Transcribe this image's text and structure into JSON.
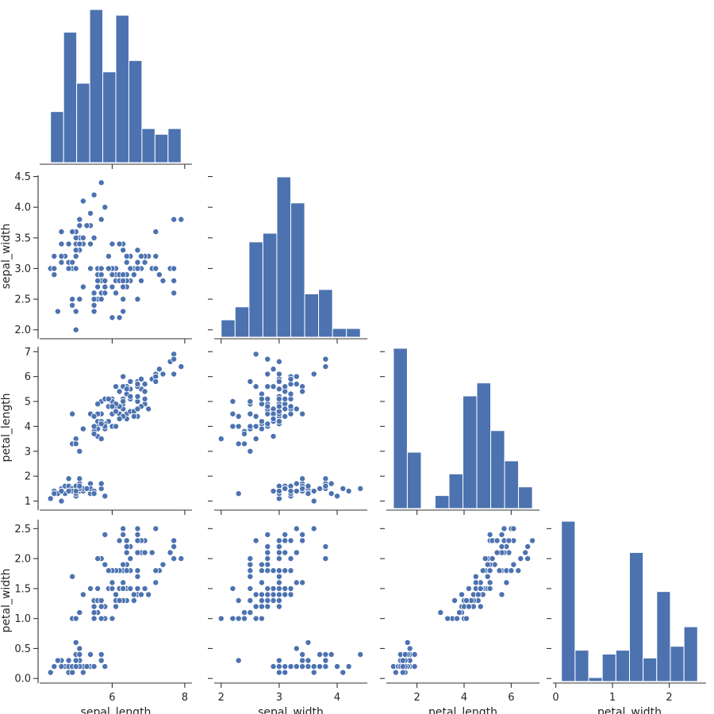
{
  "chart_data": {
    "type": "pairplot",
    "corner": true,
    "color": "#4c72b0",
    "variables": [
      "sepal_length",
      "sepal_width",
      "petal_length",
      "petal_width"
    ],
    "axis_labels": {
      "sepal_length": "sepal_length",
      "sepal_width": "sepal_width",
      "petal_length": "petal_length",
      "petal_width": "petal_width"
    },
    "ranges": {
      "sepal_length": [
        4.0,
        8.2
      ],
      "sepal_width": [
        1.88,
        4.52
      ],
      "petal_length": [
        0.7,
        7.2
      ],
      "petal_width": [
        -0.05,
        2.65
      ]
    },
    "ticks": {
      "sepal_length": [
        6,
        8
      ],
      "sepal_width": [
        2.0,
        2.5,
        3.0,
        3.5,
        4.0,
        4.5
      ],
      "petal_length": [
        1,
        2,
        3,
        4,
        5,
        6,
        7
      ],
      "petal_width": [
        0.0,
        0.5,
        1.0,
        1.5,
        2.0,
        2.5
      ]
    },
    "x_ticks": {
      "sepal_length": [
        "6",
        "8"
      ],
      "sepal_width": [
        "2",
        "3",
        "4"
      ],
      "petal_length": [
        "2",
        "4",
        "6"
      ],
      "petal_width": [
        "0",
        "1",
        "2"
      ]
    },
    "x_tick_values": {
      "sepal_length": [
        6,
        8
      ],
      "sepal_width": [
        2,
        3,
        4
      ],
      "petal_length": [
        2,
        4,
        6
      ],
      "petal_width": [
        0,
        1,
        2
      ]
    },
    "y_ticks": {
      "sepal_width": [
        "2.0",
        "2.5",
        "3.0",
        "3.5",
        "4.0",
        "4.5"
      ],
      "petal_length": [
        "1",
        "2",
        "3",
        "4",
        "5",
        "6",
        "7"
      ],
      "petal_width": [
        "0.0",
        "0.5",
        "1.0",
        "1.5",
        "2.0",
        "2.5"
      ]
    },
    "y_tick_values": {
      "sepal_width": [
        2.0,
        2.5,
        3.0,
        3.5,
        4.0,
        4.5
      ],
      "petal_length": [
        1,
        2,
        3,
        4,
        5,
        6,
        7
      ],
      "petal_width": [
        0.0,
        0.5,
        1.0,
        1.5,
        2.0,
        2.5
      ]
    },
    "histograms": {
      "sepal_length": {
        "edges": [
          4.3,
          4.66,
          5.02,
          5.38,
          5.74,
          6.1,
          6.46,
          6.82,
          7.18,
          7.54,
          7.9
        ],
        "counts": [
          9,
          23,
          14,
          27,
          16,
          26,
          18,
          6,
          5,
          6
        ]
      },
      "sepal_width": {
        "edges": [
          2.0,
          2.24,
          2.48,
          2.72,
          2.96,
          3.2,
          3.44,
          3.68,
          3.92,
          4.16,
          4.4
        ],
        "counts": [
          4,
          7,
          22,
          24,
          37,
          31,
          10,
          11,
          2,
          2
        ]
      },
      "petal_length": {
        "edges": [
          1.0,
          1.59,
          2.18,
          2.77,
          3.36,
          3.95,
          4.54,
          5.13,
          5.72,
          6.31,
          6.9
        ],
        "counts": [
          37,
          13,
          0,
          3,
          8,
          26,
          29,
          18,
          11,
          5
        ]
      },
      "petal_width": {
        "edges": [
          0.1,
          0.34,
          0.58,
          0.82,
          1.06,
          1.3,
          1.54,
          1.78,
          2.02,
          2.26,
          2.5
        ],
        "counts": [
          41,
          8,
          1,
          7,
          8,
          33,
          6,
          23,
          9,
          14
        ]
      }
    },
    "samples": [
      [
        5.1,
        3.5,
        1.4,
        0.2
      ],
      [
        4.9,
        3.0,
        1.4,
        0.2
      ],
      [
        4.7,
        3.2,
        1.3,
        0.2
      ],
      [
        4.6,
        3.1,
        1.5,
        0.2
      ],
      [
        5.0,
        3.6,
        1.4,
        0.2
      ],
      [
        5.4,
        3.9,
        1.7,
        0.4
      ],
      [
        4.6,
        3.4,
        1.4,
        0.3
      ],
      [
        5.0,
        3.4,
        1.5,
        0.2
      ],
      [
        4.4,
        2.9,
        1.4,
        0.2
      ],
      [
        4.9,
        3.1,
        1.5,
        0.1
      ],
      [
        5.4,
        3.7,
        1.5,
        0.2
      ],
      [
        4.8,
        3.4,
        1.6,
        0.2
      ],
      [
        4.8,
        3.0,
        1.4,
        0.1
      ],
      [
        4.3,
        3.0,
        1.1,
        0.1
      ],
      [
        5.8,
        4.0,
        1.2,
        0.2
      ],
      [
        5.7,
        4.4,
        1.5,
        0.4
      ],
      [
        5.4,
        3.9,
        1.3,
        0.4
      ],
      [
        5.1,
        3.5,
        1.4,
        0.3
      ],
      [
        5.7,
        3.8,
        1.7,
        0.3
      ],
      [
        5.1,
        3.8,
        1.5,
        0.3
      ],
      [
        5.4,
        3.4,
        1.7,
        0.2
      ],
      [
        5.1,
        3.7,
        1.5,
        0.4
      ],
      [
        4.6,
        3.6,
        1.0,
        0.2
      ],
      [
        5.1,
        3.3,
        1.7,
        0.5
      ],
      [
        4.8,
        3.4,
        1.9,
        0.2
      ],
      [
        5.0,
        3.0,
        1.6,
        0.2
      ],
      [
        5.0,
        3.4,
        1.6,
        0.4
      ],
      [
        5.2,
        3.5,
        1.5,
        0.2
      ],
      [
        5.2,
        3.4,
        1.4,
        0.2
      ],
      [
        4.7,
        3.2,
        1.6,
        0.2
      ],
      [
        4.8,
        3.1,
        1.6,
        0.2
      ],
      [
        5.4,
        3.4,
        1.5,
        0.4
      ],
      [
        5.2,
        4.1,
        1.5,
        0.1
      ],
      [
        5.5,
        4.2,
        1.4,
        0.2
      ],
      [
        4.9,
        3.1,
        1.5,
        0.2
      ],
      [
        5.0,
        3.2,
        1.2,
        0.2
      ],
      [
        5.5,
        3.5,
        1.3,
        0.2
      ],
      [
        4.9,
        3.6,
        1.4,
        0.1
      ],
      [
        4.4,
        3.0,
        1.3,
        0.2
      ],
      [
        5.1,
        3.4,
        1.5,
        0.2
      ],
      [
        5.0,
        3.5,
        1.3,
        0.3
      ],
      [
        4.5,
        2.3,
        1.3,
        0.3
      ],
      [
        4.4,
        3.2,
        1.3,
        0.2
      ],
      [
        5.0,
        3.5,
        1.6,
        0.6
      ],
      [
        5.1,
        3.8,
        1.9,
        0.4
      ],
      [
        4.8,
        3.0,
        1.4,
        0.3
      ],
      [
        5.1,
        3.8,
        1.6,
        0.2
      ],
      [
        4.6,
        3.2,
        1.4,
        0.2
      ],
      [
        5.3,
        3.7,
        1.5,
        0.2
      ],
      [
        5.0,
        3.3,
        1.4,
        0.2
      ],
      [
        7.0,
        3.2,
        4.7,
        1.4
      ],
      [
        6.4,
        3.2,
        4.5,
        1.5
      ],
      [
        6.9,
        3.1,
        4.9,
        1.5
      ],
      [
        5.5,
        2.3,
        4.0,
        1.3
      ],
      [
        6.5,
        2.8,
        4.6,
        1.5
      ],
      [
        5.7,
        2.8,
        4.5,
        1.3
      ],
      [
        6.3,
        3.3,
        4.7,
        1.6
      ],
      [
        4.9,
        2.4,
        3.3,
        1.0
      ],
      [
        6.6,
        2.9,
        4.6,
        1.3
      ],
      [
        5.2,
        2.7,
        3.9,
        1.4
      ],
      [
        5.0,
        2.0,
        3.5,
        1.0
      ],
      [
        5.9,
        3.0,
        4.2,
        1.5
      ],
      [
        6.0,
        2.2,
        4.0,
        1.0
      ],
      [
        6.1,
        2.9,
        4.7,
        1.4
      ],
      [
        5.6,
        2.9,
        3.6,
        1.3
      ],
      [
        6.7,
        3.1,
        4.4,
        1.4
      ],
      [
        5.6,
        3.0,
        4.5,
        1.5
      ],
      [
        5.8,
        2.7,
        4.1,
        1.0
      ],
      [
        6.2,
        2.2,
        4.5,
        1.5
      ],
      [
        5.6,
        2.5,
        3.9,
        1.1
      ],
      [
        5.9,
        3.2,
        4.8,
        1.8
      ],
      [
        6.1,
        2.8,
        4.0,
        1.3
      ],
      [
        6.3,
        2.5,
        4.9,
        1.5
      ],
      [
        6.1,
        2.8,
        4.7,
        1.2
      ],
      [
        6.4,
        2.9,
        4.3,
        1.3
      ],
      [
        6.6,
        3.0,
        4.4,
        1.4
      ],
      [
        6.8,
        2.8,
        4.8,
        1.4
      ],
      [
        6.7,
        3.0,
        5.0,
        1.7
      ],
      [
        6.0,
        2.9,
        4.5,
        1.5
      ],
      [
        5.7,
        2.6,
        3.5,
        1.0
      ],
      [
        5.5,
        2.4,
        3.8,
        1.1
      ],
      [
        5.5,
        2.4,
        3.7,
        1.0
      ],
      [
        5.8,
        2.7,
        3.9,
        1.2
      ],
      [
        6.0,
        2.7,
        5.1,
        1.6
      ],
      [
        5.4,
        3.0,
        4.5,
        1.5
      ],
      [
        6.0,
        3.4,
        4.5,
        1.6
      ],
      [
        6.7,
        3.1,
        4.7,
        1.5
      ],
      [
        6.3,
        2.3,
        4.4,
        1.3
      ],
      [
        5.6,
        3.0,
        4.1,
        1.3
      ],
      [
        5.5,
        2.5,
        4.0,
        1.3
      ],
      [
        5.5,
        2.6,
        4.4,
        1.2
      ],
      [
        6.1,
        3.0,
        4.6,
        1.4
      ],
      [
        5.8,
        2.6,
        4.0,
        1.2
      ],
      [
        5.0,
        2.3,
        3.3,
        1.0
      ],
      [
        5.6,
        2.7,
        4.2,
        1.3
      ],
      [
        5.7,
        3.0,
        4.2,
        1.2
      ],
      [
        5.7,
        2.9,
        4.2,
        1.3
      ],
      [
        6.2,
        2.9,
        4.3,
        1.3
      ],
      [
        5.1,
        2.5,
        3.0,
        1.1
      ],
      [
        5.7,
        2.8,
        4.1,
        1.3
      ],
      [
        6.3,
        3.3,
        6.0,
        2.5
      ],
      [
        5.8,
        2.7,
        5.1,
        1.9
      ],
      [
        7.1,
        3.0,
        5.9,
        2.1
      ],
      [
        6.3,
        2.9,
        5.6,
        1.8
      ],
      [
        6.5,
        3.0,
        5.8,
        2.2
      ],
      [
        7.6,
        3.0,
        6.6,
        2.1
      ],
      [
        4.9,
        2.5,
        4.5,
        1.7
      ],
      [
        7.3,
        2.9,
        6.3,
        1.8
      ],
      [
        6.7,
        2.5,
        5.8,
        1.8
      ],
      [
        7.2,
        3.6,
        6.1,
        2.5
      ],
      [
        6.5,
        3.2,
        5.1,
        2.0
      ],
      [
        6.4,
        2.7,
        5.3,
        1.9
      ],
      [
        6.8,
        3.0,
        5.5,
        2.1
      ],
      [
        5.7,
        2.5,
        5.0,
        2.0
      ],
      [
        5.8,
        2.8,
        5.1,
        2.4
      ],
      [
        6.4,
        3.2,
        5.3,
        2.3
      ],
      [
        6.5,
        3.0,
        5.5,
        1.8
      ],
      [
        7.7,
        3.8,
        6.7,
        2.2
      ],
      [
        7.7,
        2.6,
        6.9,
        2.3
      ],
      [
        6.0,
        2.2,
        5.0,
        1.5
      ],
      [
        6.9,
        3.2,
        5.7,
        2.3
      ],
      [
        5.6,
        2.8,
        4.9,
        2.0
      ],
      [
        7.7,
        2.8,
        6.7,
        2.0
      ],
      [
        6.3,
        2.7,
        4.9,
        1.8
      ],
      [
        6.7,
        3.3,
        5.7,
        2.1
      ],
      [
        7.2,
        3.2,
        6.0,
        1.8
      ],
      [
        6.2,
        2.8,
        4.8,
        1.8
      ],
      [
        6.1,
        3.0,
        4.9,
        1.8
      ],
      [
        6.4,
        2.8,
        5.6,
        2.1
      ],
      [
        7.2,
        3.0,
        5.8,
        1.6
      ],
      [
        7.4,
        2.8,
        6.1,
        1.9
      ],
      [
        7.9,
        3.8,
        6.4,
        2.0
      ],
      [
        6.4,
        2.8,
        5.6,
        2.2
      ],
      [
        6.3,
        2.8,
        5.1,
        1.5
      ],
      [
        6.1,
        2.6,
        5.6,
        1.4
      ],
      [
        7.7,
        3.0,
        6.1,
        2.3
      ],
      [
        6.3,
        3.4,
        5.6,
        2.4
      ],
      [
        6.4,
        3.1,
        5.5,
        1.8
      ],
      [
        6.0,
        3.0,
        4.8,
        1.8
      ],
      [
        6.9,
        3.1,
        5.4,
        2.1
      ],
      [
        6.7,
        3.1,
        5.6,
        2.4
      ],
      [
        6.9,
        3.1,
        5.1,
        2.3
      ],
      [
        5.8,
        2.7,
        5.1,
        1.9
      ],
      [
        6.8,
        3.2,
        5.9,
        2.3
      ],
      [
        6.7,
        3.3,
        5.7,
        2.5
      ],
      [
        6.7,
        3.0,
        5.2,
        2.3
      ],
      [
        6.3,
        2.5,
        5.0,
        1.9
      ],
      [
        6.5,
        3.0,
        5.2,
        2.0
      ],
      [
        6.2,
        3.4,
        5.4,
        2.3
      ],
      [
        5.9,
        3.0,
        5.1,
        1.8
      ]
    ]
  }
}
